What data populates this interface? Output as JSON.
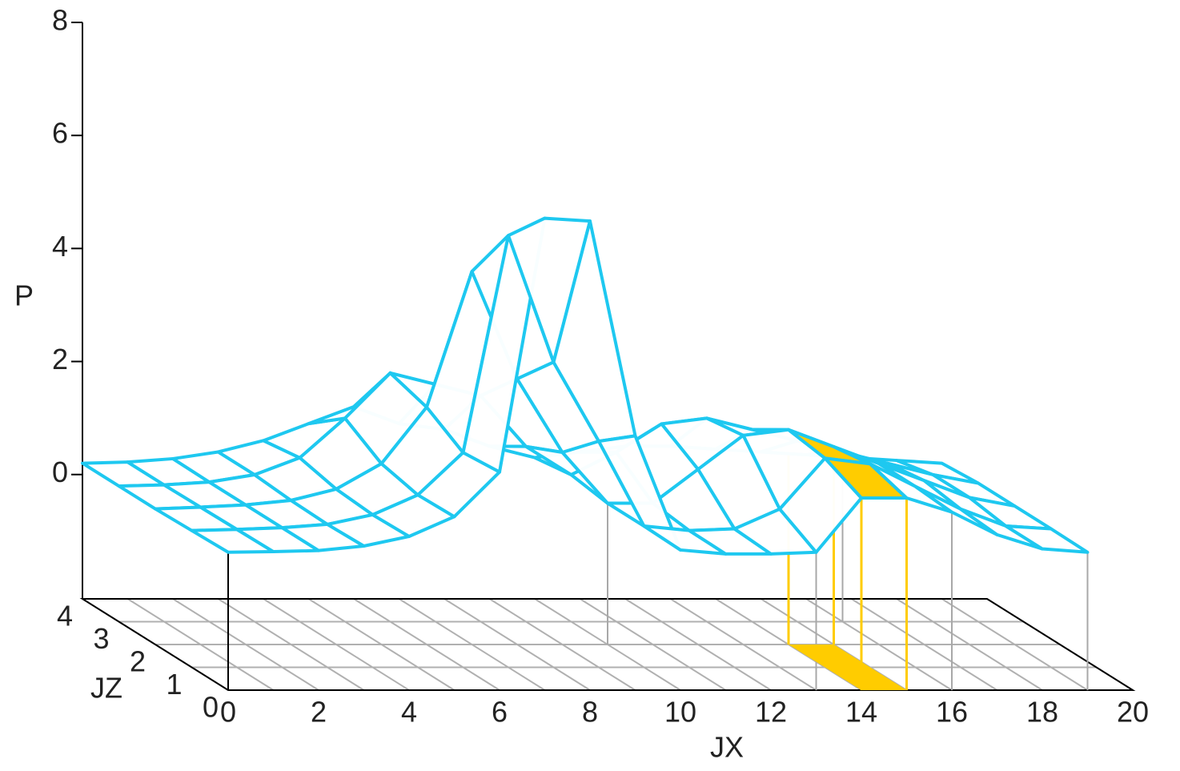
{
  "chart_data": {
    "type": "surface3d",
    "y_label": "P",
    "x_label": "JX",
    "z_label": "JZ",
    "x": [
      0,
      1,
      2,
      3,
      4,
      5,
      6,
      7,
      8,
      9,
      10,
      11,
      12,
      13,
      14,
      15,
      16,
      17,
      18,
      19
    ],
    "z": [
      0,
      1,
      2,
      3,
      4
    ],
    "values": [
      [
        0.24,
        0.25,
        0.27,
        0.35,
        0.52,
        0.87,
        1.66,
        6.15,
        6.1,
        2.3,
        0.28,
        0.21,
        0.21,
        0.24,
        1.2,
        1.2,
        0.95,
        0.55,
        0.3,
        0.24
      ],
      [
        0.22,
        0.24,
        0.27,
        0.33,
        0.5,
        0.85,
        1.6,
        5.44,
        3.2,
        1.8,
        0.3,
        0.22,
        0.25,
        0.6,
        1.5,
        1.4,
        1.0,
        0.6,
        0.3,
        0.25
      ],
      [
        0.2,
        0.23,
        0.27,
        0.35,
        0.55,
        1.0,
        2.0,
        4.4,
        2.5,
        1.2,
        0.3,
        0.3,
        0.9,
        1.5,
        1.6,
        1.3,
        1.0,
        0.7,
        0.4,
        0.25
      ],
      [
        0.2,
        0.22,
        0.27,
        0.4,
        0.7,
        1.4,
        2.2,
        2.0,
        1.8,
        0.9,
        0.4,
        0.8,
        1.3,
        1.4,
        1.2,
        1.0,
        0.8,
        0.6,
        0.4,
        0.25
      ],
      [
        0.2,
        0.22,
        0.28,
        0.4,
        0.6,
        0.9,
        1.2,
        0.9,
        0.8,
        0.5,
        0.3,
        0.4,
        0.5,
        0.5,
        0.45,
        0.4,
        0.35,
        0.3,
        0.25,
        0.2
      ]
    ],
    "color": "#1ec8f0",
    "floor_grid_color": "#b0b0b0",
    "xlim": [
      0,
      20
    ],
    "xticks": [
      0,
      2,
      4,
      6,
      8,
      10,
      12,
      14,
      16,
      18,
      20
    ],
    "zlim": [
      0,
      4
    ],
    "zticks": [
      0,
      1,
      2,
      3,
      4
    ],
    "ylim": [
      -2.2,
      8
    ],
    "yticks": [
      0,
      2,
      4,
      6,
      8
    ],
    "drop_lines": [
      [
        0,
        0
      ],
      [
        13,
        0
      ],
      [
        16,
        0
      ],
      [
        19,
        0
      ],
      [
        10,
        2
      ],
      [
        16,
        3
      ]
    ],
    "drop_color": "#a8a8a8",
    "highlight": {
      "x": [
        14,
        15
      ],
      "z": [
        0,
        2
      ],
      "color": "#ffcc00"
    }
  }
}
